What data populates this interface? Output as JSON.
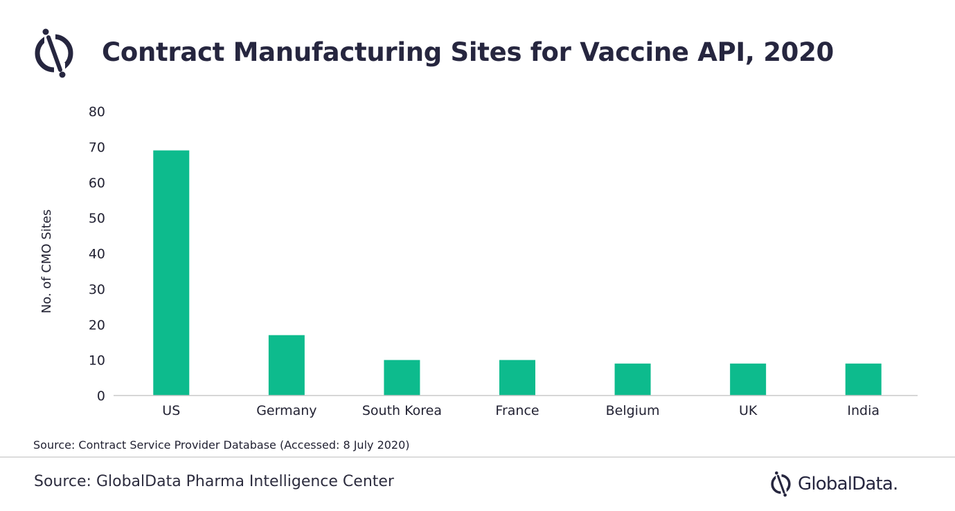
{
  "header": {
    "logo_icon": "globaldata-logo-icon",
    "title": "Contract Manufacturing Sites for Vaccine API, 2020"
  },
  "chart_data": {
    "type": "bar",
    "title": "Contract Manufacturing Sites for Vaccine API, 2020",
    "categories": [
      "US",
      "Germany",
      "South Korea",
      "France",
      "Belgium",
      "UK",
      "India"
    ],
    "values": [
      69,
      17,
      10,
      10,
      9,
      9,
      9
    ],
    "xlabel": "",
    "ylabel": "No. of CMO Sites",
    "ylim": [
      0,
      80
    ],
    "yticks": [
      0,
      10,
      20,
      30,
      40,
      50,
      60,
      70,
      80
    ],
    "grid": false,
    "legend": "none",
    "bar_color": "#0dbb8d"
  },
  "note": "Source: Contract Service Provider Database (Accessed: 8 July 2020)",
  "footer": {
    "source": "Source: GlobalData Pharma Intelligence Center",
    "brand_icon": "globaldata-logo-icon",
    "brand_name": "GlobalData."
  },
  "colors": {
    "accent": "#0dbb8d",
    "text": "#26263f",
    "divider": "#dcdcdc"
  }
}
